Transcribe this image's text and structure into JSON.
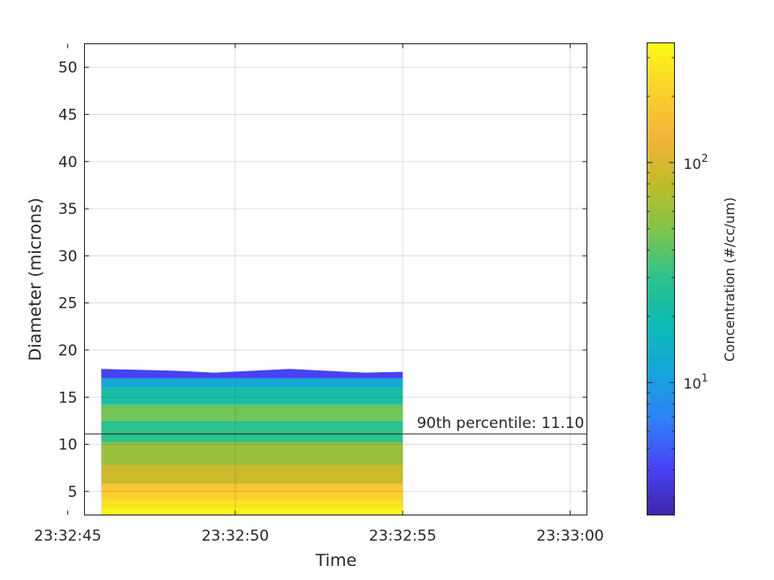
{
  "chart_data": {
    "type": "heatmap",
    "xlabel": "Time",
    "ylabel": "Diameter (microns)",
    "x_ticks": [
      "23:32:45",
      "23:32:50",
      "23:32:55",
      "23:33:00"
    ],
    "x_range_seconds": [
      45.5,
      60.5
    ],
    "y_ticks": [
      5,
      10,
      15,
      20,
      25,
      30,
      35,
      40,
      45,
      50
    ],
    "ylim": [
      2.5,
      52.5
    ],
    "grid": true,
    "time_samples": [
      "23:32:46",
      "23:32:47",
      "23:32:48",
      "23:32:49",
      "23:32:50",
      "23:32:51",
      "23:32:52",
      "23:32:53",
      "23:32:54"
    ],
    "data_time_range": [
      "23:32:46",
      "23:32:55"
    ],
    "size_distribution_top_diameter": [
      18.0,
      17.9,
      17.8,
      17.6,
      17.8,
      18.0,
      17.8,
      17.6,
      17.7
    ],
    "bands": [
      {
        "d_min": 2.5,
        "d_max": 3.3,
        "concentration": 320
      },
      {
        "d_min": 3.3,
        "d_max": 4.1,
        "concentration": 260
      },
      {
        "d_min": 4.1,
        "d_max": 4.9,
        "concentration": 210
      },
      {
        "d_min": 4.9,
        "d_max": 5.8,
        "concentration": 180
      },
      {
        "d_min": 5.8,
        "d_max": 7.8,
        "concentration": 90
      },
      {
        "d_min": 7.8,
        "d_max": 10.2,
        "concentration": 60
      },
      {
        "d_min": 10.2,
        "d_max": 12.5,
        "concentration": 30
      },
      {
        "d_min": 12.5,
        "d_max": 14.2,
        "concentration": 45
      },
      {
        "d_min": 14.2,
        "d_max": 16.0,
        "concentration": 22
      },
      {
        "d_min": 16.0,
        "d_max": 17.0,
        "concentration": 12
      },
      {
        "d_min": 17.0,
        "d_max": 18.0,
        "concentration": 4
      }
    ],
    "colorbar": {
      "label": "Concentration (#/cc/um)",
      "scale": "log",
      "range": [
        2.5,
        350
      ],
      "ticks": [
        {
          "value": 10,
          "label_base": "10",
          "label_exp": "1"
        },
        {
          "value": 100,
          "label_base": "10",
          "label_exp": "2"
        }
      ],
      "colormap": [
        "#3e26a8",
        "#4743f8",
        "#2f80f8",
        "#16a5dc",
        "#0dbab6",
        "#2ac28e",
        "#7cc54c",
        "#bfbc26",
        "#f4b43b",
        "#fcd12a",
        "#f9fb15"
      ]
    },
    "percentile_line": {
      "diameter": 11.1,
      "label": "90th percentile: 11.10"
    }
  }
}
